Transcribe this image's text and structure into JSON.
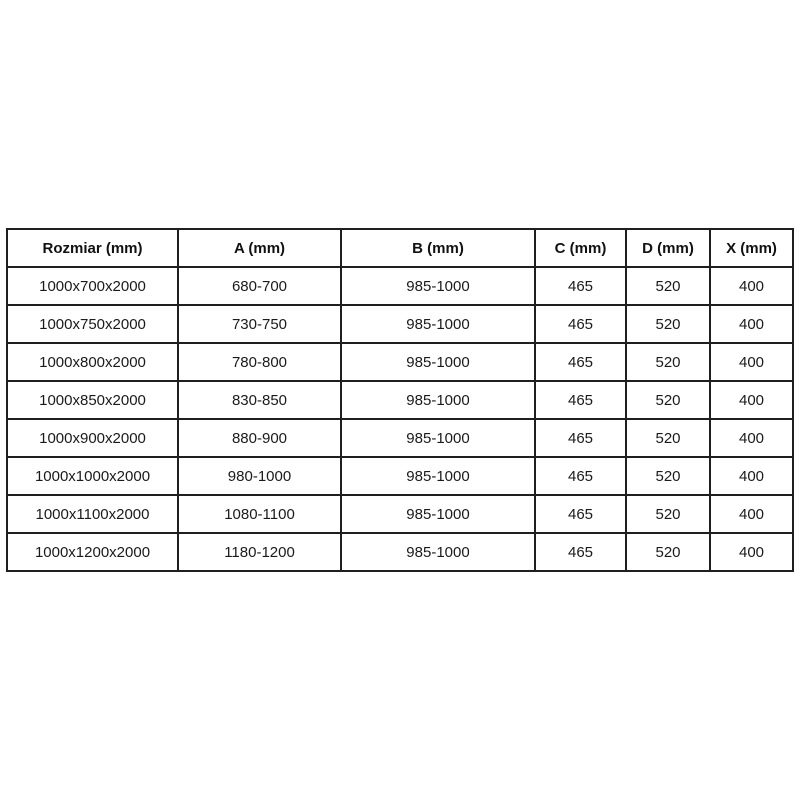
{
  "colors": {
    "background": "#ffffff",
    "grid_border": "#1f1f1f",
    "header_text": "#111111",
    "cell_text": "#1a1a1a"
  },
  "table": {
    "headers": [
      "Rozmiar (mm)",
      "A (mm)",
      "B (mm)",
      "C (mm)",
      "D (mm)",
      "X (mm)"
    ],
    "rows": [
      [
        "1000x700x2000",
        "680-700",
        "985-1000",
        "465",
        "520",
        "400"
      ],
      [
        "1000x750x2000",
        "730-750",
        "985-1000",
        "465",
        "520",
        "400"
      ],
      [
        "1000x800x2000",
        "780-800",
        "985-1000",
        "465",
        "520",
        "400"
      ],
      [
        "1000x850x2000",
        "830-850",
        "985-1000",
        "465",
        "520",
        "400"
      ],
      [
        "1000x900x2000",
        "880-900",
        "985-1000",
        "465",
        "520",
        "400"
      ],
      [
        "1000x1000x2000",
        "980-1000",
        "985-1000",
        "465",
        "520",
        "400"
      ],
      [
        "1000x1100x2000",
        "1080-1100",
        "985-1000",
        "465",
        "520",
        "400"
      ],
      [
        "1000x1200x2000",
        "1180-1200",
        "985-1000",
        "465",
        "520",
        "400"
      ]
    ]
  },
  "chart_data": {
    "type": "table",
    "title": "",
    "columns": [
      "Rozmiar (mm)",
      "A (mm)",
      "B (mm)",
      "C (mm)",
      "D (mm)",
      "X (mm)"
    ],
    "rows": [
      [
        "1000x700x2000",
        "680-700",
        "985-1000",
        "465",
        "520",
        "400"
      ],
      [
        "1000x750x2000",
        "730-750",
        "985-1000",
        "465",
        "520",
        "400"
      ],
      [
        "1000x800x2000",
        "780-800",
        "985-1000",
        "465",
        "520",
        "400"
      ],
      [
        "1000x850x2000",
        "830-850",
        "985-1000",
        "465",
        "520",
        "400"
      ],
      [
        "1000x900x2000",
        "880-900",
        "985-1000",
        "465",
        "520",
        "400"
      ],
      [
        "1000x1000x2000",
        "980-1000",
        "985-1000",
        "465",
        "520",
        "400"
      ],
      [
        "1000x1100x2000",
        "1080-1100",
        "985-1000",
        "465",
        "520",
        "400"
      ],
      [
        "1000x1200x2000",
        "1180-1200",
        "985-1000",
        "465",
        "520",
        "400"
      ]
    ]
  }
}
